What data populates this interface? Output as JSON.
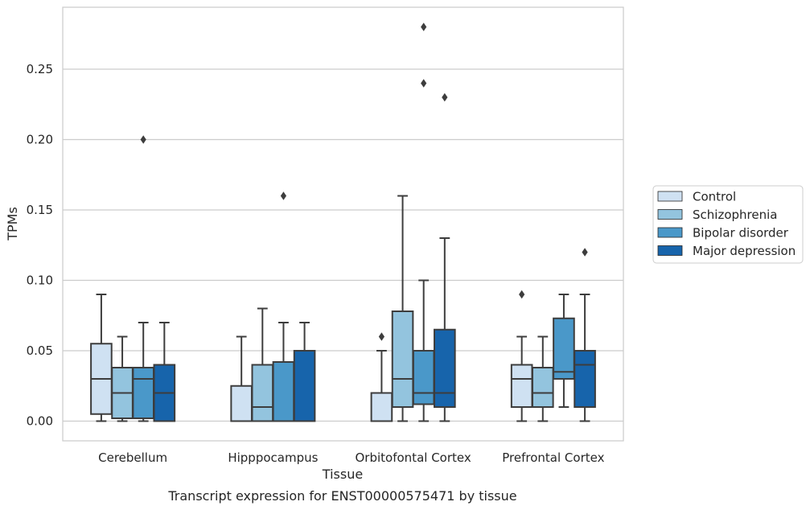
{
  "chart_data": {
    "type": "box",
    "title": "Transcript expression for ENST00000575471 by tissue",
    "xlabel": "Tissue",
    "ylabel": "TPMs",
    "ylim": [
      -0.014,
      0.294
    ],
    "yticks": [
      "0.00",
      "0.05",
      "0.10",
      "0.15",
      "0.20",
      "0.25"
    ],
    "ytick_values": [
      0,
      0.05,
      0.1,
      0.15,
      0.2,
      0.25
    ],
    "grid": true,
    "legend_position": "right",
    "categories": [
      "Cerebellum",
      "Hipppocampus",
      "Orbitofontal Cortex",
      "Prefrontal Cortex"
    ],
    "series": [
      {
        "name": "Control",
        "color": "#cfe1f2",
        "boxes": [
          {
            "whislo": 0.0,
            "q1": 0.005,
            "med": 0.03,
            "q3": 0.055,
            "whishi": 0.09,
            "fliers": []
          },
          {
            "whislo": 0.0,
            "q1": 0.0,
            "med": 0.0,
            "q3": 0.025,
            "whishi": 0.06,
            "fliers": []
          },
          {
            "whislo": 0.0,
            "q1": 0.0,
            "med": 0.0,
            "q3": 0.02,
            "whishi": 0.05,
            "fliers": [
              0.06
            ]
          },
          {
            "whislo": 0.0,
            "q1": 0.01,
            "med": 0.03,
            "q3": 0.04,
            "whishi": 0.06,
            "fliers": [
              0.09
            ]
          }
        ]
      },
      {
        "name": "Schizophrenia",
        "color": "#93c4de",
        "boxes": [
          {
            "whislo": 0.0,
            "q1": 0.002,
            "med": 0.02,
            "q3": 0.038,
            "whishi": 0.06,
            "fliers": []
          },
          {
            "whislo": 0.0,
            "q1": 0.0,
            "med": 0.01,
            "q3": 0.04,
            "whishi": 0.08,
            "fliers": []
          },
          {
            "whislo": 0.0,
            "q1": 0.01,
            "med": 0.03,
            "q3": 0.078,
            "whishi": 0.16,
            "fliers": []
          },
          {
            "whislo": 0.0,
            "q1": 0.01,
            "med": 0.02,
            "q3": 0.038,
            "whishi": 0.06,
            "fliers": []
          }
        ]
      },
      {
        "name": "Bipolar disorder",
        "color": "#4a98c9",
        "boxes": [
          {
            "whislo": 0.0,
            "q1": 0.002,
            "med": 0.03,
            "q3": 0.038,
            "whishi": 0.07,
            "fliers": [
              0.2
            ]
          },
          {
            "whislo": 0.0,
            "q1": 0.0,
            "med": 0.0,
            "q3": 0.042,
            "whishi": 0.07,
            "fliers": [
              0.16
            ]
          },
          {
            "whislo": 0.0,
            "q1": 0.012,
            "med": 0.02,
            "q3": 0.05,
            "whishi": 0.1,
            "fliers": [
              0.24,
              0.28
            ]
          },
          {
            "whislo": 0.01,
            "q1": 0.03,
            "med": 0.035,
            "q3": 0.073,
            "whishi": 0.09,
            "fliers": []
          }
        ]
      },
      {
        "name": "Major depression",
        "color": "#1764ab",
        "boxes": [
          {
            "whislo": 0.0,
            "q1": 0.0,
            "med": 0.02,
            "q3": 0.04,
            "whishi": 0.07,
            "fliers": []
          },
          {
            "whislo": 0.0,
            "q1": 0.0,
            "med": 0.0,
            "q3": 0.05,
            "whishi": 0.07,
            "fliers": []
          },
          {
            "whislo": 0.0,
            "q1": 0.01,
            "med": 0.02,
            "q3": 0.065,
            "whishi": 0.13,
            "fliers": [
              0.23
            ]
          },
          {
            "whislo": 0.0,
            "q1": 0.01,
            "med": 0.04,
            "q3": 0.05,
            "whishi": 0.09,
            "fliers": [
              0.12
            ]
          }
        ]
      }
    ]
  }
}
